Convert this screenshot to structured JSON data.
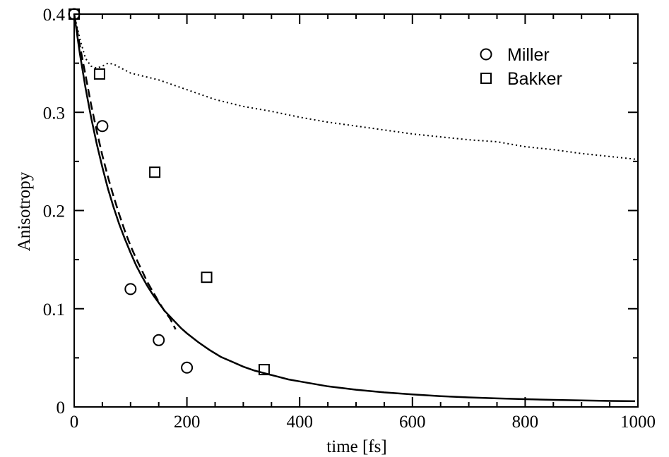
{
  "chart_data": {
    "type": "scatter",
    "title": "",
    "xlabel": "time [fs]",
    "ylabel": "Anisotropy",
    "xlim": [
      0,
      1000
    ],
    "ylim": [
      0,
      0.4
    ],
    "x_ticks": [
      "0",
      "200",
      "400",
      "600",
      "800",
      "1000"
    ],
    "y_ticks": [
      "0",
      "0.1",
      "0.2",
      "0.3",
      "0.4"
    ],
    "grid": false,
    "legend_position": "top-right",
    "legend": [
      "Miller",
      "Bakker"
    ],
    "series": [
      {
        "name": "Miller",
        "kind": "points",
        "marker": "circle",
        "x": [
          0,
          50,
          100,
          150,
          200
        ],
        "y": [
          0.4,
          0.286,
          0.12,
          0.068,
          0.04
        ]
      },
      {
        "name": "Bakker",
        "kind": "points",
        "marker": "square",
        "x": [
          0,
          45,
          143,
          235,
          337
        ],
        "y": [
          0.4,
          0.339,
          0.239,
          0.132,
          0.038
        ]
      },
      {
        "kind": "line",
        "style": "solid",
        "x": [
          0,
          10,
          20,
          30,
          40,
          50,
          60,
          70,
          80,
          90,
          100,
          110,
          120,
          130,
          140,
          150,
          160,
          170,
          180,
          190,
          200,
          220,
          240,
          260,
          280,
          300,
          320,
          340,
          360,
          380,
          400,
          450,
          500,
          550,
          600,
          650,
          700,
          750,
          800,
          850,
          900,
          950,
          995
        ],
        "y": [
          0.4,
          0.36,
          0.325,
          0.295,
          0.268,
          0.244,
          0.222,
          0.203,
          0.186,
          0.171,
          0.157,
          0.144,
          0.133,
          0.123,
          0.114,
          0.106,
          0.098,
          0.092,
          0.086,
          0.08,
          0.075,
          0.066,
          0.058,
          0.051,
          0.046,
          0.041,
          0.037,
          0.034,
          0.031,
          0.028,
          0.026,
          0.021,
          0.0175,
          0.0148,
          0.0127,
          0.011,
          0.0097,
          0.0087,
          0.0079,
          0.0072,
          0.0066,
          0.0061,
          0.0058
        ]
      },
      {
        "kind": "line",
        "style": "dashed",
        "x": [
          0,
          10,
          20,
          30,
          40,
          50,
          60,
          70,
          80,
          90,
          100,
          110,
          120,
          130,
          140,
          150,
          160,
          170,
          180
        ],
        "y": [
          0.4,
          0.368,
          0.338,
          0.308,
          0.281,
          0.256,
          0.234,
          0.214,
          0.196,
          0.179,
          0.164,
          0.151,
          0.139,
          0.127,
          0.117,
          0.107,
          0.098,
          0.09,
          0.079
        ]
      },
      {
        "kind": "line",
        "style": "dotted",
        "x": [
          0,
          10,
          20,
          30,
          40,
          50,
          60,
          70,
          80,
          100,
          150,
          200,
          250,
          300,
          350,
          400,
          450,
          500,
          550,
          600,
          650,
          700,
          750,
          800,
          850,
          900,
          950,
          1000
        ],
        "y": [
          0.4,
          0.375,
          0.355,
          0.347,
          0.345,
          0.347,
          0.35,
          0.349,
          0.346,
          0.34,
          0.333,
          0.323,
          0.313,
          0.306,
          0.301,
          0.295,
          0.29,
          0.286,
          0.282,
          0.278,
          0.275,
          0.272,
          0.27,
          0.265,
          0.262,
          0.258,
          0.255,
          0.252
        ]
      }
    ]
  }
}
